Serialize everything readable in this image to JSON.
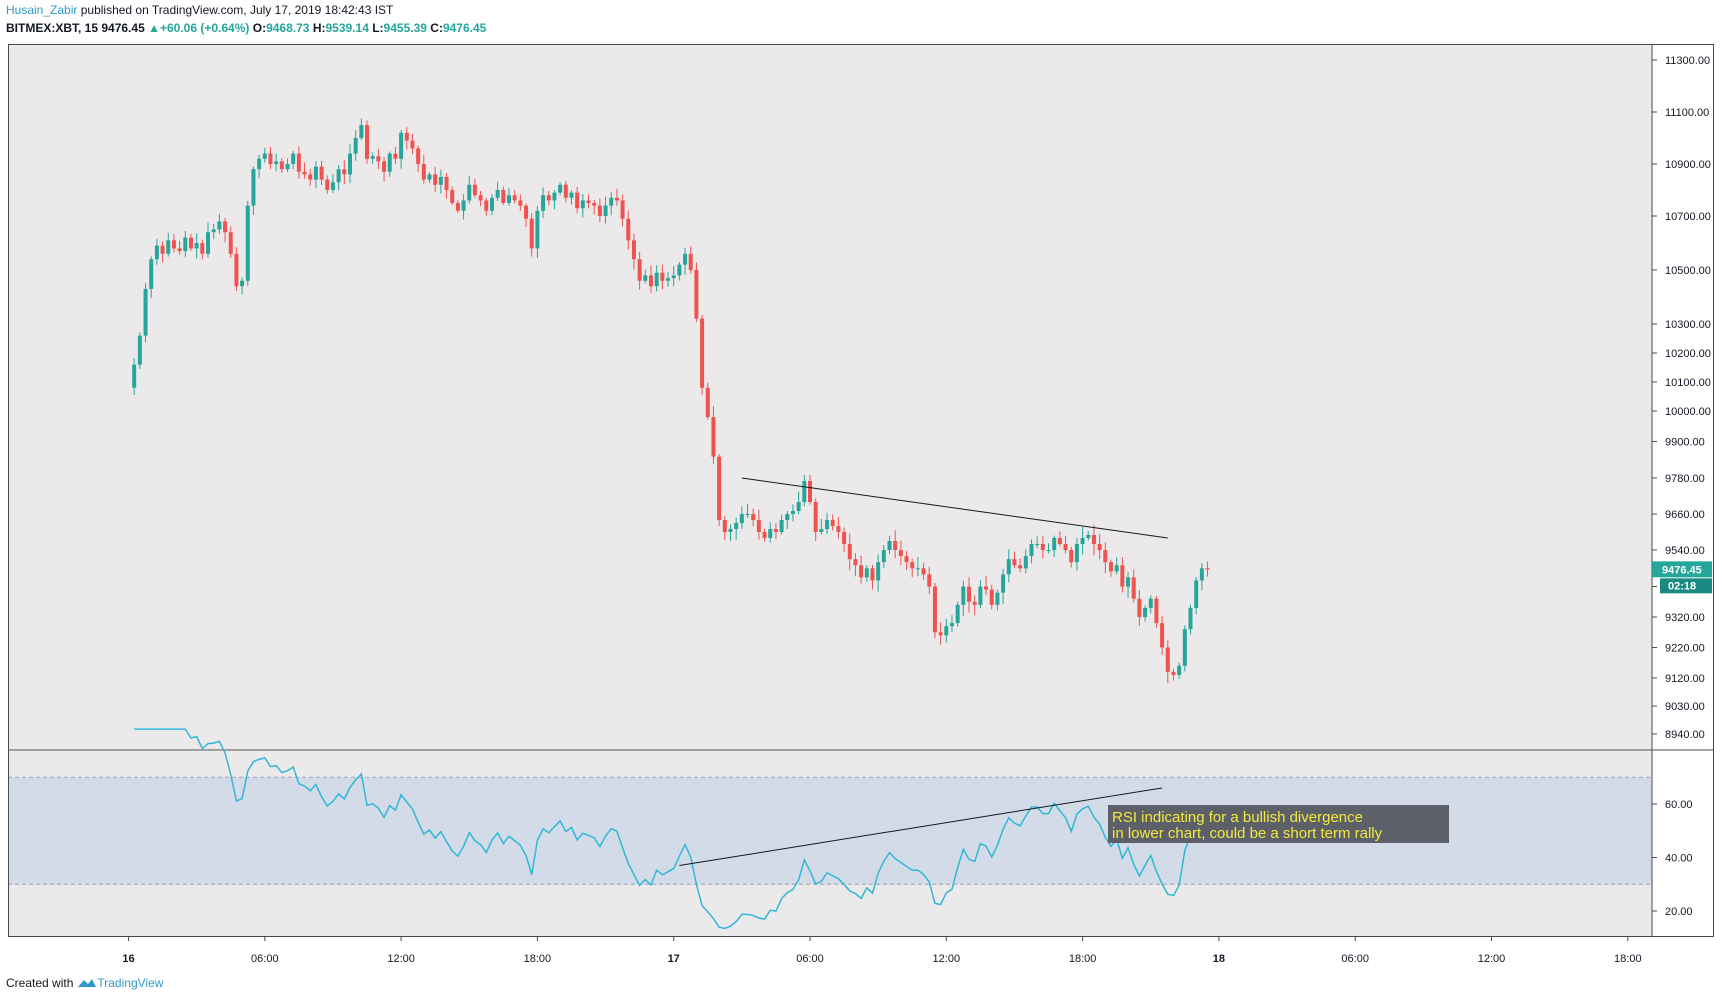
{
  "header": {
    "author": "Husain_Zabir",
    "published": "published on TradingView.com, July 17, 2019 18:42:43 IST",
    "symbol": "BITMEX:XBT, 15",
    "last": "9476.45",
    "change_arrow": "▲",
    "change": "+60.06 (+0.64%)",
    "o_label": "O:",
    "o": "9468.73",
    "h_label": "H:",
    "h": "9539.14",
    "l_label": "L:",
    "l": "9455.39",
    "c_label": "C:",
    "c": "9476.45"
  },
  "footer": {
    "created_with": "Created with",
    "brand": "TradingView",
    "logo_icon": "tradingview-logo-icon"
  },
  "colors": {
    "up": "#26a69a",
    "down": "#ef5350",
    "rsi_line": "#2eb8d6",
    "rsi_band": "#d4dbe8",
    "pane_bg": "#ece9ea",
    "annotation_bg": "#5d6068",
    "annotation_text": "#f1ea3e"
  },
  "chart_data": {
    "type": "candlestick",
    "price_axis_ticks": [
      "11300.00",
      "11100.00",
      "10900.00",
      "10700.00",
      "10500.00",
      "10300.00",
      "10200.00",
      "10100.00",
      "10000.00",
      "9900.00",
      "9780.00",
      "9660.00",
      "9540.00",
      "9420.00",
      "9320.00",
      "9220.00",
      "9120.00",
      "9030.00",
      "8940.00"
    ],
    "last_price_label": "9476.45",
    "countdown_label": "02:18",
    "rsi_axis_ticks": [
      "60.00",
      "40.00",
      "20.00"
    ],
    "rsi_band": [
      30,
      70
    ],
    "x_ticks": [
      "16",
      "06:00",
      "12:00",
      "18:00",
      "17",
      "06:00",
      "12:00",
      "18:00",
      "18",
      "06:00",
      "12:00",
      "18:00"
    ],
    "annotation": [
      "RSI indicating for a bullish divergence",
      "in lower chart, could be a short term rally"
    ],
    "price_trendline": [
      [
        27.0,
        9780
      ],
      [
        45.75,
        9580
      ]
    ],
    "rsi_trendline": [
      [
        24.25,
        37
      ],
      [
        45.5,
        66
      ]
    ],
    "candles_start_hour": 0,
    "candles_interval_hours": 0.25,
    "price_series": [
      10080,
      10160,
      10260,
      10430,
      10540,
      10590,
      10560,
      10610,
      10580,
      10570,
      10620,
      10580,
      10600,
      10560,
      10640,
      10650,
      10680,
      10640,
      10560,
      10440,
      10460,
      10740,
      10880,
      10920,
      10940,
      10900,
      10910,
      10880,
      10900,
      10940,
      10870,
      10860,
      10840,
      10890,
      10840,
      10800,
      10830,
      10880,
      10860,
      10940,
      11000,
      11050,
      10920,
      10930,
      10910,
      10870,
      10940,
      10920,
      11020,
      10990,
      10960,
      10900,
      10840,
      10860,
      10820,
      10850,
      10800,
      10750,
      10720,
      10760,
      10820,
      10780,
      10760,
      10720,
      10770,
      10800,
      10750,
      10780,
      10760,
      10740,
      10690,
      10580,
      10720,
      10780,
      10760,
      10790,
      10820,
      10770,
      10790,
      10730,
      10760,
      10750,
      10740,
      10700,
      10740,
      10770,
      10760,
      10690,
      10610,
      10540,
      10460,
      10480,
      10440,
      10490,
      10460,
      10470,
      10480,
      10520,
      10560,
      10500,
      10320,
      10080,
      9980,
      9850,
      9640,
      9600,
      9610,
      9630,
      9660,
      9660,
      9640,
      9600,
      9580,
      9610,
      9600,
      9640,
      9660,
      9670,
      9700,
      9770,
      9700,
      9600,
      9610,
      9640,
      9620,
      9600,
      9560,
      9510,
      9490,
      9450,
      9480,
      9440,
      9500,
      9540,
      9570,
      9540,
      9520,
      9500,
      9480,
      9480,
      9460,
      9420,
      9270,
      9260,
      9290,
      9300,
      9360,
      9420,
      9370,
      9360,
      9420,
      9410,
      9360,
      9400,
      9460,
      9510,
      9490,
      9480,
      9520,
      9560,
      9560,
      9540,
      9540,
      9580,
      9560,
      9540,
      9500,
      9560,
      9580,
      9590,
      9560,
      9540,
      9500,
      9470,
      9490,
      9420,
      9450,
      9380,
      9320,
      9350,
      9380,
      9300,
      9220,
      9140,
      9130,
      9160,
      9280,
      9350,
      9440,
      9480,
      9476
    ]
  }
}
